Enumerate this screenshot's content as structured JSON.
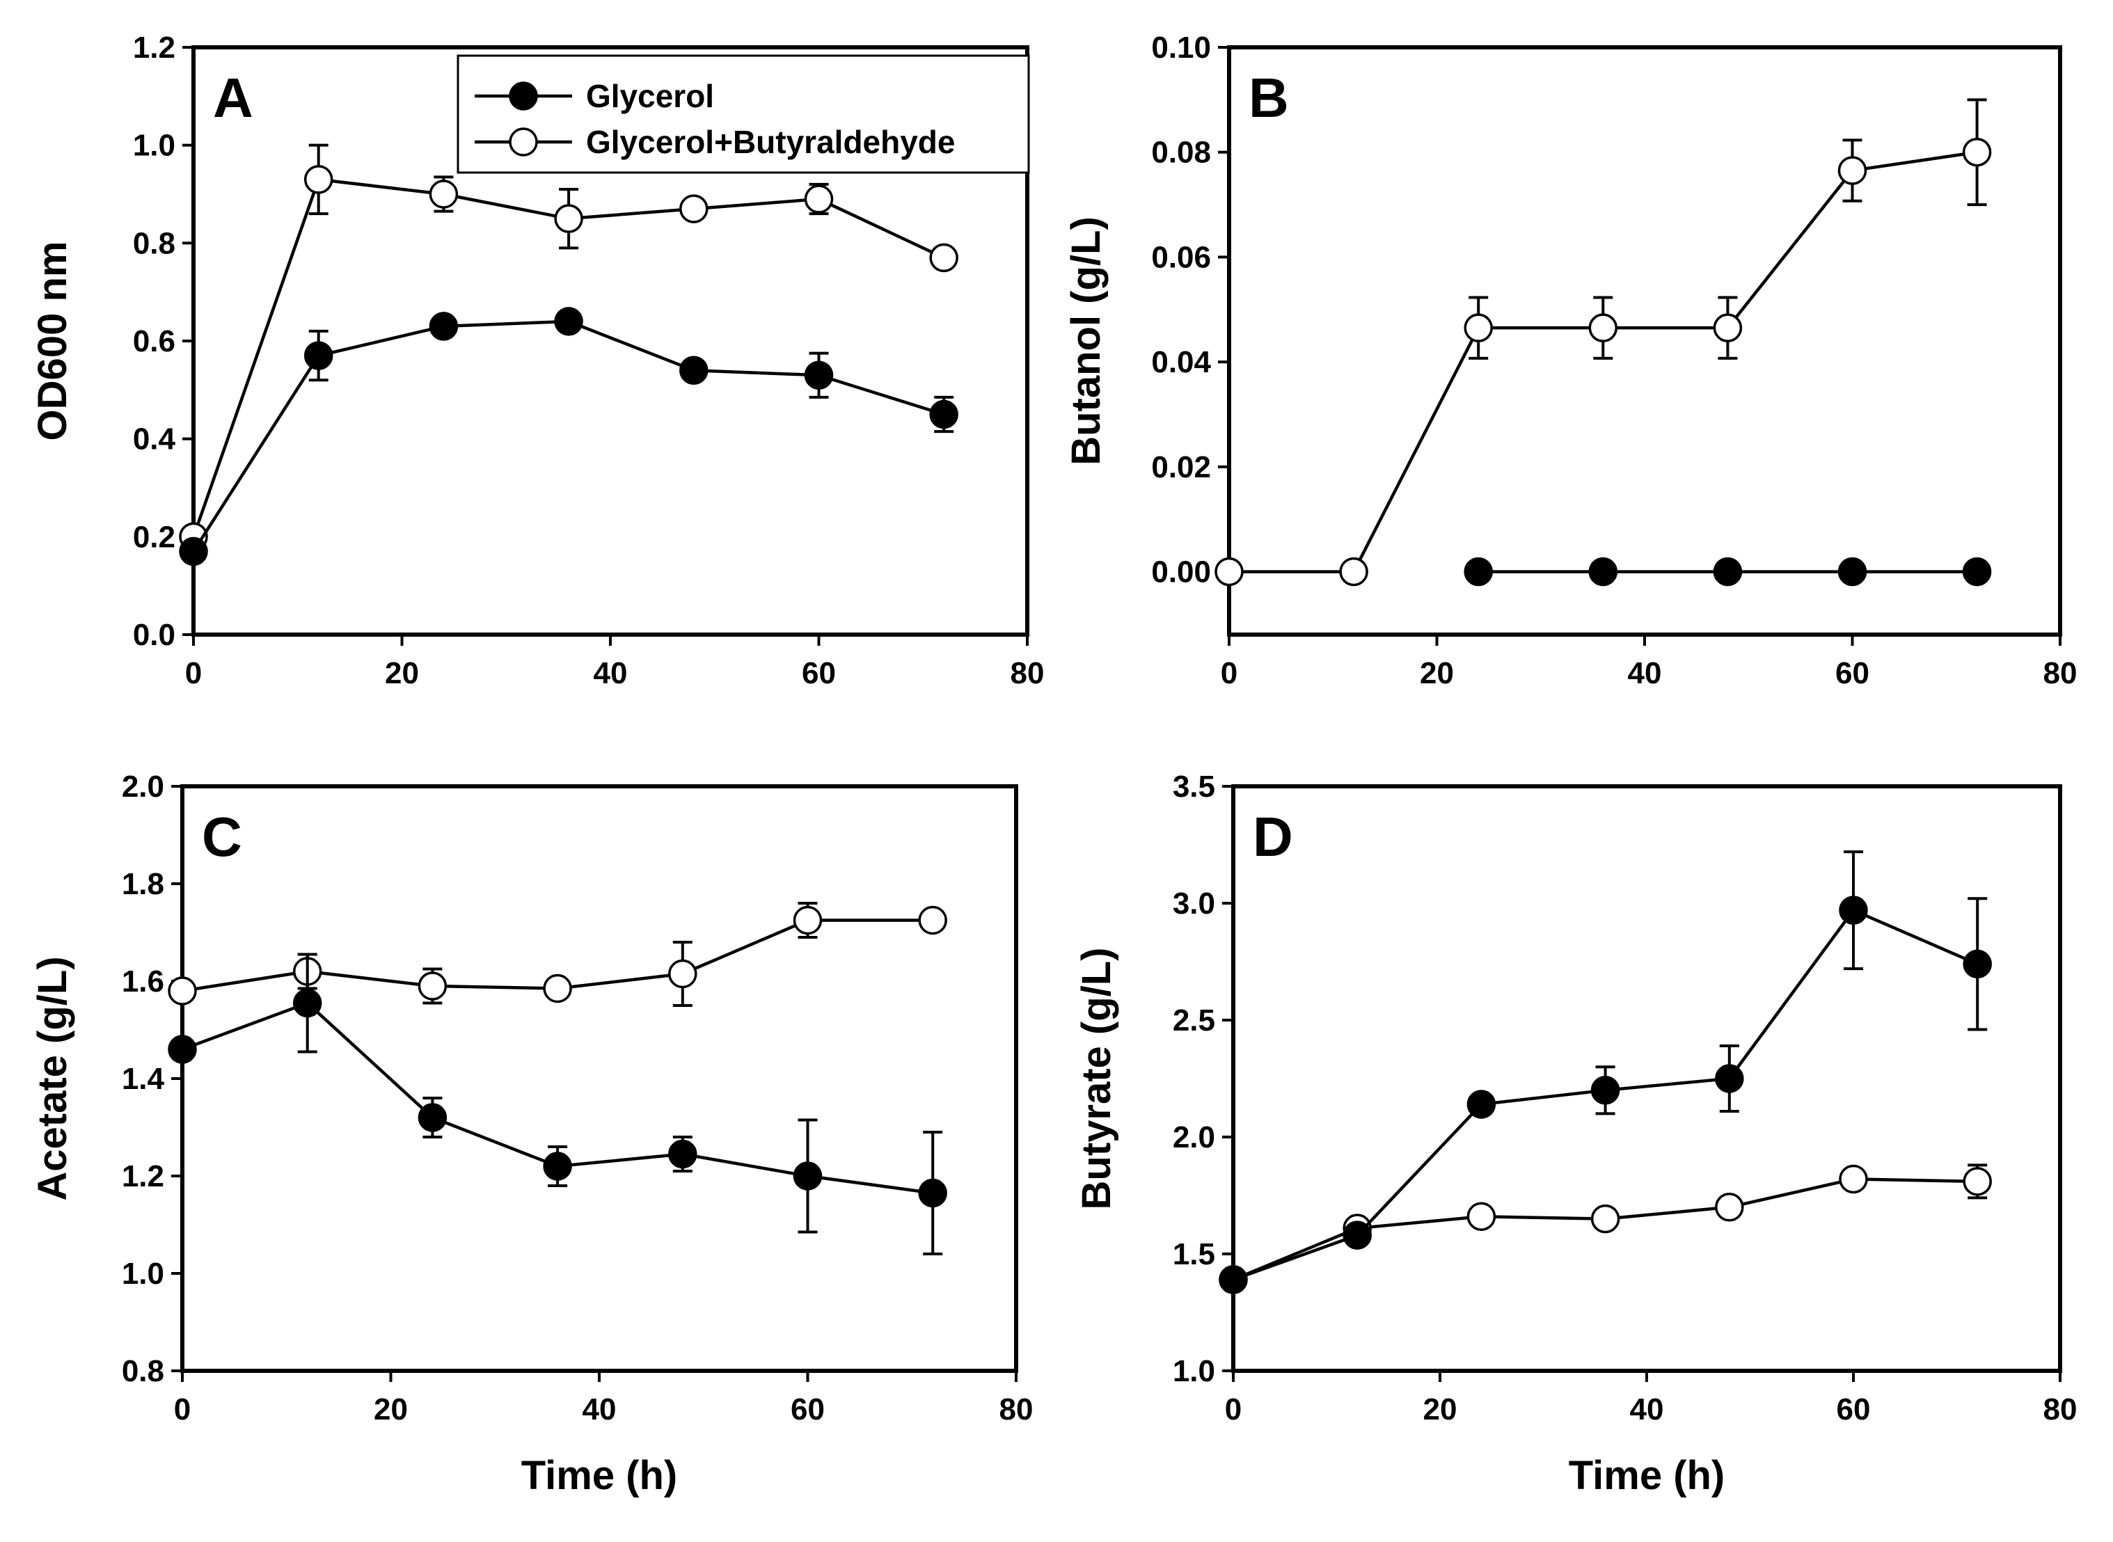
{
  "figure": {
    "legend": {
      "entries": [
        {
          "label": "Glycerol",
          "series": "glycerol"
        },
        {
          "label": "Glycerol+Butyraldehyde",
          "series": "glycerol_butyraldehyde"
        }
      ]
    },
    "colors": {
      "glycerol_fill": "#000000",
      "glycerol_butyraldehyde_fill": "#ffffff",
      "line": "#000000"
    }
  },
  "chart_data": [
    {
      "type": "line",
      "panel": "A",
      "title": "",
      "xlabel": "",
      "ylabel": "OD600 nm",
      "xlim": [
        0,
        80
      ],
      "ylim": [
        0.0,
        1.2
      ],
      "xticks": [
        0,
        20,
        40,
        60,
        80
      ],
      "xtick_labels": [
        "0",
        "20",
        "40",
        "60",
        "80"
      ],
      "yticks": [
        0.0,
        0.2,
        0.4,
        0.6,
        0.8,
        1.0,
        1.2
      ],
      "ytick_labels": [
        "0.0",
        "0.2",
        "0.4",
        "0.6",
        "0.8",
        "1.0",
        "1.2"
      ],
      "legend_position": "top-right",
      "series": [
        {
          "name": "Glycerol",
          "marker": "filled",
          "x": [
            0,
            12,
            24,
            36,
            48,
            60,
            72
          ],
          "values": [
            0.17,
            0.57,
            0.63,
            0.64,
            0.54,
            0.53,
            0.45
          ],
          "errors": [
            0.0,
            0.05,
            0.0,
            0.0,
            0.0,
            0.045,
            0.035
          ]
        },
        {
          "name": "Glycerol+Butyraldehyde",
          "marker": "open",
          "x": [
            0,
            12,
            24,
            36,
            48,
            60,
            72
          ],
          "values": [
            0.2,
            0.93,
            0.9,
            0.85,
            0.87,
            0.89,
            0.77
          ],
          "errors": [
            0.0,
            0.07,
            0.035,
            0.06,
            0.0,
            0.03,
            0.0
          ]
        }
      ]
    },
    {
      "type": "line",
      "panel": "B",
      "title": "",
      "xlabel": "",
      "ylabel": "Butanol (g/L)",
      "xlim": [
        0,
        80
      ],
      "ylim": [
        -0.012,
        0.1
      ],
      "xticks": [
        0,
        20,
        40,
        60,
        80
      ],
      "xtick_labels": [
        "0",
        "20",
        "40",
        "60",
        "80"
      ],
      "yticks": [
        0.0,
        0.02,
        0.04,
        0.06,
        0.08,
        0.1
      ],
      "ytick_labels": [
        "0.00",
        "0.02",
        "0.04",
        "0.06",
        "0.08",
        "0.10"
      ],
      "series": [
        {
          "name": "Glycerol",
          "marker": "filled",
          "x": [
            24,
            36,
            48,
            60,
            72
          ],
          "values": [
            0,
            0,
            0,
            0,
            0
          ],
          "errors": [
            0,
            0,
            0,
            0,
            0
          ]
        },
        {
          "name": "Glycerol+Butyraldehyde",
          "marker": "open",
          "x": [
            0,
            12,
            24,
            36,
            48,
            60,
            72
          ],
          "values": [
            0,
            0,
            0.0465,
            0.0465,
            0.0465,
            0.0765,
            0.08
          ],
          "errors": [
            0,
            0,
            0.0058,
            0.0058,
            0.0058,
            0.0058,
            0.01
          ]
        }
      ]
    },
    {
      "type": "line",
      "panel": "C",
      "title": "",
      "xlabel": "Time (h)",
      "ylabel": "Acetate (g/L)",
      "xlim": [
        0,
        80
      ],
      "ylim": [
        0.8,
        2.0
      ],
      "xticks": [
        0,
        20,
        40,
        60,
        80
      ],
      "xtick_labels": [
        "0",
        "20",
        "40",
        "60",
        "80"
      ],
      "yticks": [
        0.8,
        1.0,
        1.2,
        1.4,
        1.6,
        1.8,
        2.0
      ],
      "ytick_labels": [
        "0.8",
        "1.0",
        "1.2",
        "1.4",
        "1.6",
        "1.8",
        "2.0"
      ],
      "series": [
        {
          "name": "Glycerol",
          "marker": "filled",
          "x": [
            0,
            12,
            24,
            36,
            48,
            60,
            72
          ],
          "values": [
            1.46,
            1.555,
            1.32,
            1.22,
            1.245,
            1.2,
            1.165
          ],
          "errors": [
            0,
            0.1,
            0.04,
            0.04,
            0.035,
            0.115,
            0.125
          ]
        },
        {
          "name": "Glycerol+Butyraldehyde",
          "marker": "open",
          "x": [
            0,
            12,
            24,
            36,
            48,
            60,
            72
          ],
          "values": [
            1.58,
            1.62,
            1.59,
            1.585,
            1.615,
            1.725,
            1.725
          ],
          "errors": [
            0,
            0.035,
            0.035,
            0,
            0.065,
            0.035,
            0
          ]
        }
      ]
    },
    {
      "type": "line",
      "panel": "D",
      "title": "",
      "xlabel": "Time (h)",
      "ylabel": "Butyrate (g/L)",
      "xlim": [
        0,
        80
      ],
      "ylim": [
        1.0,
        3.5
      ],
      "xticks": [
        0,
        20,
        40,
        60,
        80
      ],
      "xtick_labels": [
        "0",
        "20",
        "40",
        "60",
        "80"
      ],
      "yticks": [
        1.0,
        1.5,
        2.0,
        2.5,
        3.0,
        3.5
      ],
      "ytick_labels": [
        "1.0",
        "1.5",
        "2.0",
        "2.5",
        "3.0",
        "3.5"
      ],
      "series": [
        {
          "name": "Glycerol",
          "marker": "filled",
          "x": [
            0,
            12,
            24,
            36,
            48,
            60,
            72
          ],
          "values": [
            1.39,
            1.58,
            2.14,
            2.2,
            2.25,
            2.97,
            2.74
          ],
          "errors": [
            0,
            0.04,
            0,
            0.1,
            0.14,
            0.25,
            0.28
          ]
        },
        {
          "name": "Glycerol+Butyraldehyde",
          "marker": "open",
          "x": [
            0,
            12,
            24,
            36,
            48,
            60,
            72
          ],
          "values": [
            1.39,
            1.61,
            1.66,
            1.65,
            1.7,
            1.82,
            1.81
          ],
          "errors": [
            0,
            0,
            0,
            0,
            0,
            0,
            0.07
          ]
        }
      ]
    }
  ]
}
